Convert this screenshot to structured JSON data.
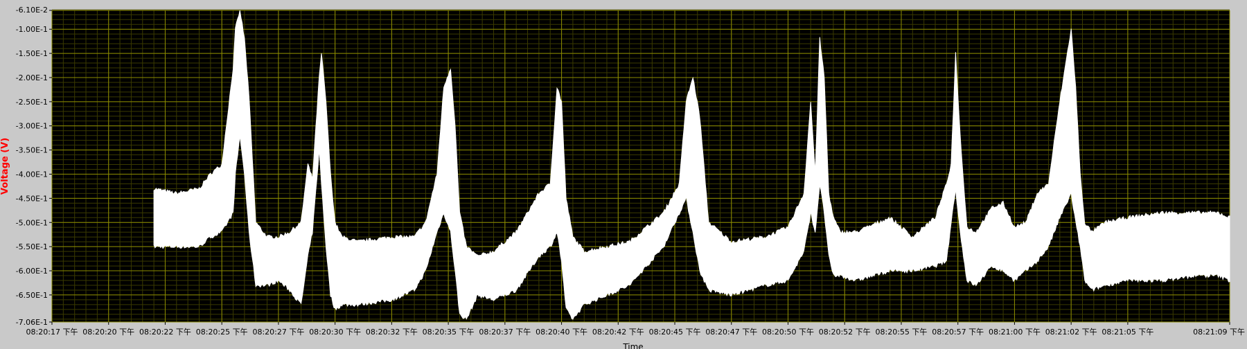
{
  "chart_data": {
    "type": "area",
    "title": "",
    "xlabel": "Time",
    "ylabel": "Voltage (V)",
    "ylim": [
      -0.706,
      -0.061
    ],
    "xlim_seconds": [
      0,
      52
    ],
    "grid": true,
    "colors": {
      "background": "#000000",
      "frame": "#c9c9c9",
      "grid_major": "#8c8c00",
      "grid_minor": "#3a3a00",
      "series": "#ffffff",
      "ylabel": "#ff0000",
      "text": "#000000"
    },
    "y_ticks": [
      "-6.10E-2",
      "-1.00E-1",
      "-1.50E-1",
      "-2.00E-1",
      "-2.50E-1",
      "-3.00E-1",
      "-3.50E-1",
      "-4.00E-1",
      "-4.50E-1",
      "-5.00E-1",
      "-5.50E-1",
      "-6.00E-1",
      "-6.50E-1",
      "-7.06E-1"
    ],
    "y_tick_values": [
      -0.061,
      -0.1,
      -0.15,
      -0.2,
      -0.25,
      -0.3,
      -0.35,
      -0.4,
      -0.45,
      -0.5,
      -0.55,
      -0.6,
      -0.65,
      -0.706
    ],
    "x_ticks": [
      "08:20:17 下午",
      "08:20:20 下午",
      "08:20:22 下午",
      "08:20:25 下午",
      "08:20:27 下午",
      "08:20:30 下午",
      "08:20:32 下午",
      "08:20:35 下午",
      "08:20:37 下午",
      "08:20:40 下午",
      "08:20:42 下午",
      "08:20:45 下午",
      "08:20:47 下午",
      "08:20:50 下午",
      "08:20:52 下午",
      "08:20:55 下午",
      "08:20:57 下午",
      "08:21:00 下午",
      "08:21:02 下午",
      "08:21:05 下午",
      "08:21:09 下午"
    ],
    "x_tick_values": [
      0,
      2.5,
      5,
      7.5,
      10,
      12.5,
      15,
      17.5,
      20,
      22.5,
      25,
      27.5,
      30,
      32.5,
      35,
      37.5,
      40,
      42.5,
      45,
      47.5,
      52
    ],
    "series": [
      {
        "x": [
          4.5,
          5.5,
          6.5,
          7.0,
          7.5,
          8.0,
          8.1,
          8.3,
          8.5,
          8.7,
          9.0,
          9.5,
          10.0,
          10.5,
          11.0,
          11.3,
          11.5,
          11.8,
          11.9,
          12.1,
          12.3,
          12.5,
          12.8,
          13.5,
          15.0,
          16.0,
          16.5,
          17.0,
          17.3,
          17.6,
          17.8,
          18.0,
          18.3,
          18.8,
          19.5,
          20.5,
          21.5,
          22.0,
          22.3,
          22.5,
          22.7,
          23.0,
          23.5,
          24.5,
          25.5,
          27.0,
          27.7,
          28.0,
          28.3,
          28.6,
          29.0,
          30.0,
          31.5,
          32.5,
          33.2,
          33.5,
          33.7,
          33.9,
          34.1,
          34.3,
          34.5,
          34.8,
          35.5,
          37.0,
          38.0,
          39.0,
          39.5,
          39.7,
          39.9,
          40.1,
          40.4,
          40.8,
          41.5,
          42.0,
          42.5,
          43.0,
          43.5,
          44.0,
          44.5,
          45.0,
          45.2,
          45.4,
          45.6,
          45.9,
          46.5,
          47.5,
          49.0,
          50.5,
          51.5,
          52.0
        ],
        "upper": [
          -0.43,
          -0.44,
          -0.43,
          -0.4,
          -0.38,
          -0.18,
          -0.1,
          -0.06,
          -0.12,
          -0.24,
          -0.5,
          -0.53,
          -0.53,
          -0.52,
          -0.5,
          -0.38,
          -0.41,
          -0.2,
          -0.15,
          -0.25,
          -0.4,
          -0.5,
          -0.53,
          -0.54,
          -0.53,
          -0.53,
          -0.5,
          -0.4,
          -0.22,
          -0.18,
          -0.3,
          -0.48,
          -0.55,
          -0.57,
          -0.56,
          -0.52,
          -0.44,
          -0.42,
          -0.22,
          -0.25,
          -0.45,
          -0.53,
          -0.56,
          -0.55,
          -0.54,
          -0.48,
          -0.42,
          -0.25,
          -0.2,
          -0.28,
          -0.5,
          -0.54,
          -0.53,
          -0.51,
          -0.44,
          -0.25,
          -0.4,
          -0.12,
          -0.2,
          -0.44,
          -0.49,
          -0.52,
          -0.52,
          -0.49,
          -0.53,
          -0.49,
          -0.42,
          -0.38,
          -0.15,
          -0.32,
          -0.51,
          -0.52,
          -0.47,
          -0.46,
          -0.51,
          -0.5,
          -0.44,
          -0.42,
          -0.25,
          -0.1,
          -0.22,
          -0.4,
          -0.5,
          -0.52,
          -0.5,
          -0.49,
          -0.48,
          -0.48,
          -0.48,
          -0.49
        ],
        "lower": [
          -0.55,
          -0.55,
          -0.55,
          -0.53,
          -0.52,
          -0.48,
          -0.4,
          -0.32,
          -0.4,
          -0.52,
          -0.63,
          -0.63,
          -0.62,
          -0.64,
          -0.67,
          -0.57,
          -0.52,
          -0.35,
          -0.42,
          -0.55,
          -0.65,
          -0.68,
          -0.67,
          -0.67,
          -0.66,
          -0.64,
          -0.6,
          -0.52,
          -0.48,
          -0.52,
          -0.6,
          -0.69,
          -0.7,
          -0.65,
          -0.66,
          -0.64,
          -0.57,
          -0.55,
          -0.52,
          -0.58,
          -0.68,
          -0.7,
          -0.67,
          -0.65,
          -0.63,
          -0.55,
          -0.48,
          -0.45,
          -0.52,
          -0.6,
          -0.64,
          -0.65,
          -0.63,
          -0.62,
          -0.56,
          -0.48,
          -0.52,
          -0.42,
          -0.48,
          -0.57,
          -0.61,
          -0.61,
          -0.62,
          -0.6,
          -0.6,
          -0.59,
          -0.58,
          -0.5,
          -0.43,
          -0.52,
          -0.62,
          -0.63,
          -0.59,
          -0.6,
          -0.62,
          -0.6,
          -0.58,
          -0.55,
          -0.49,
          -0.44,
          -0.5,
          -0.55,
          -0.62,
          -0.64,
          -0.63,
          -0.62,
          -0.62,
          -0.61,
          -0.61,
          -0.62
        ]
      }
    ]
  }
}
